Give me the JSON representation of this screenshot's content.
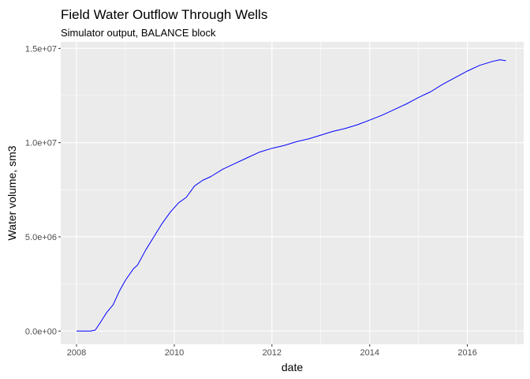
{
  "chart_data": {
    "type": "line",
    "title": "Field Water Outflow Through Wells",
    "subtitle": "Simulator output, BALANCE block",
    "xlabel": "date",
    "ylabel": "Water volume, sm3",
    "xlim": [
      "2007-09-05",
      "2017-02-25"
    ],
    "ylim": [
      -700000,
      15350000
    ],
    "x_ticks": [
      "2008-01-01",
      "2010-01-01",
      "2012-01-01",
      "2014-01-01",
      "2016-01-01"
    ],
    "x_tick_labels": [
      "2008",
      "2010",
      "2012",
      "2014",
      "2016"
    ],
    "y_ticks": [
      0,
      5000000,
      10000000,
      15000000
    ],
    "y_tick_labels": [
      "0.0e+00",
      "5.0e+06",
      "1.0e+07",
      "1.5e+07"
    ],
    "grid": true,
    "legend": "none",
    "panel_color": "#ebebeb",
    "grid_color": "#ffffff",
    "series": [
      {
        "color": "#0000ff",
        "x": [
          "2008-01-01",
          "2008-04-15",
          "2008-05-20",
          "2008-07-01",
          "2008-08-15",
          "2008-10-01",
          "2008-11-15",
          "2009-01-01",
          "2009-03-01",
          "2009-04-01",
          "2009-06-01",
          "2009-08-01",
          "2009-10-01",
          "2009-12-01",
          "2010-02-01",
          "2010-04-01",
          "2010-06-01",
          "2010-08-01",
          "2010-10-01",
          "2011-01-01",
          "2011-04-01",
          "2011-07-01",
          "2011-10-01",
          "2012-01-01",
          "2012-04-01",
          "2012-07-01",
          "2012-10-01",
          "2013-01-01",
          "2013-04-01",
          "2013-07-01",
          "2013-10-01",
          "2014-01-01",
          "2014-04-01",
          "2014-07-01",
          "2014-10-01",
          "2015-01-01",
          "2015-04-01",
          "2015-07-01",
          "2015-10-01",
          "2016-01-01",
          "2016-04-01",
          "2016-07-01",
          "2016-09-01",
          "2016-10-15"
        ],
        "y": [
          0,
          0,
          50000,
          500000,
          1000000,
          1400000,
          2100000,
          2700000,
          3300000,
          3500000,
          4300000,
          5000000,
          5700000,
          6300000,
          6800000,
          7100000,
          7700000,
          8000000,
          8200000,
          8600000,
          8900000,
          9200000,
          9500000,
          9700000,
          9850000,
          10050000,
          10200000,
          10400000,
          10600000,
          10750000,
          10950000,
          11200000,
          11450000,
          11750000,
          12050000,
          12400000,
          12700000,
          13100000,
          13450000,
          13800000,
          14100000,
          14300000,
          14400000,
          14350000
        ]
      }
    ]
  }
}
